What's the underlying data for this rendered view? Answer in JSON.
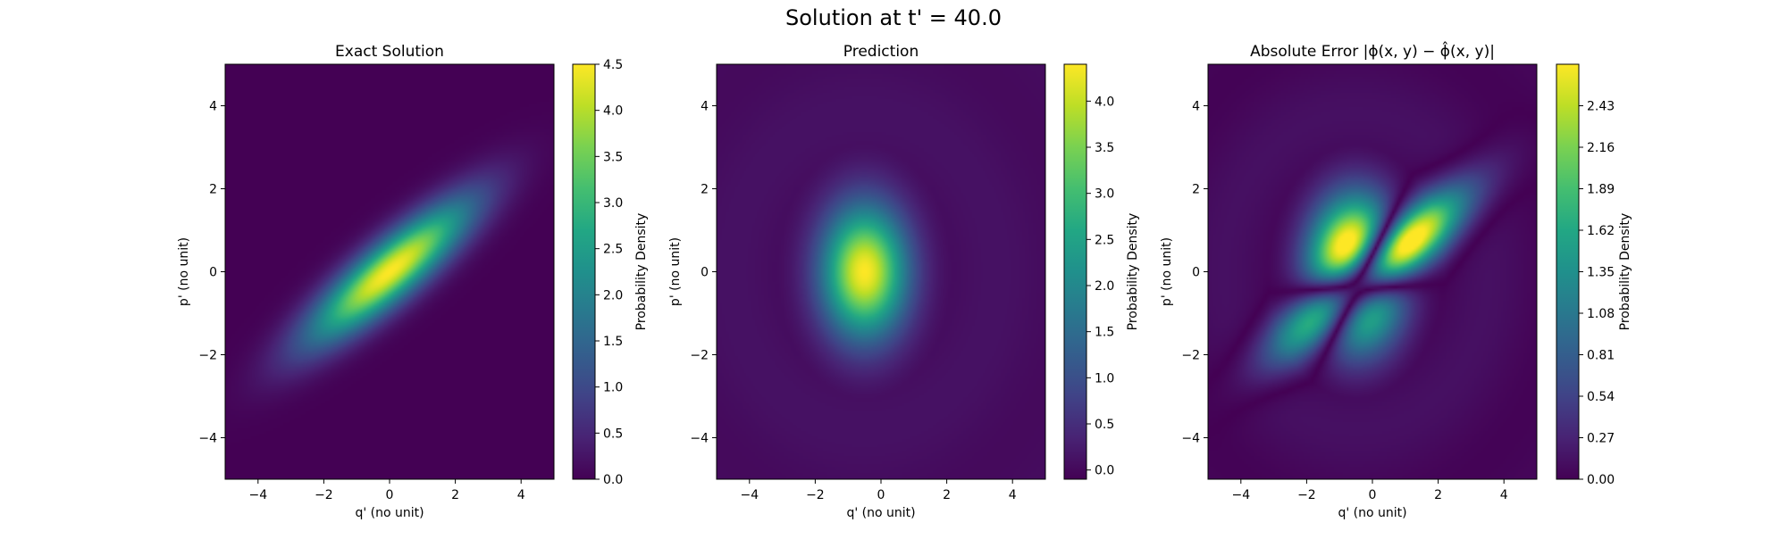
{
  "figure": {
    "suptitle": "Solution at t' = 40.0"
  },
  "chart_data": [
    {
      "type": "heatmap",
      "title": "Exact Solution",
      "xlabel": "q' (no unit)",
      "ylabel": "p' (no unit)",
      "xlim": [
        -5,
        5
      ],
      "ylim": [
        -5,
        5
      ],
      "xticks": [
        -4,
        -2,
        0,
        2,
        4
      ],
      "yticks": [
        -4,
        -2,
        0,
        2,
        4
      ],
      "colormap": "viridis",
      "colorbar": {
        "label": "Probability Density",
        "range": [
          0.0,
          4.5
        ],
        "ticks": [
          "0.0",
          "0.5",
          "1.0",
          "1.5",
          "2.0",
          "2.5",
          "3.0",
          "3.5",
          "4.0",
          "4.5"
        ]
      },
      "field": {
        "kind": "gaussian",
        "center": [
          0,
          0
        ],
        "peak": 4.5,
        "major_sigma": 2.0,
        "minor_sigma": 0.5,
        "angle_deg": 33
      }
    },
    {
      "type": "heatmap",
      "title": "Prediction",
      "xlabel": "q' (no unit)",
      "ylabel": "p' (no unit)",
      "xlim": [
        -5,
        5
      ],
      "ylim": [
        -5,
        5
      ],
      "xticks": [
        -4,
        -2,
        0,
        2,
        4
      ],
      "yticks": [
        -4,
        -2,
        0,
        2,
        4
      ],
      "colormap": "viridis",
      "colorbar": {
        "label": "Probability Density",
        "range": [
          -0.1,
          4.4
        ],
        "ticks": [
          "0.0",
          "0.5",
          "1.0",
          "1.5",
          "2.0",
          "2.5",
          "3.0",
          "3.5",
          "4.0"
        ]
      },
      "field": {
        "kind": "gaussian",
        "center": [
          -0.5,
          0
        ],
        "peak": 4.4,
        "sigma_x": 0.9,
        "sigma_y": 1.1,
        "baseline": 0.15
      }
    },
    {
      "type": "heatmap",
      "title": "Absolute Error |ϕ(x, y) − ϕ̂(x, y)|",
      "xlabel": "q' (no unit)",
      "ylabel": "p' (no unit)",
      "xlim": [
        -5,
        5
      ],
      "ylim": [
        -5,
        5
      ],
      "xticks": [
        -4,
        -2,
        0,
        2,
        4
      ],
      "yticks": [
        -4,
        -2,
        0,
        2,
        4
      ],
      "colormap": "viridis",
      "colorbar": {
        "label": "Probability Density",
        "range": [
          0.0,
          2.7
        ],
        "ticks": [
          "0.00",
          "0.27",
          "0.54",
          "0.81",
          "1.08",
          "1.35",
          "1.62",
          "1.89",
          "2.16",
          "2.43"
        ]
      },
      "field": {
        "kind": "abs_difference",
        "of": [
          0,
          1
        ],
        "max": 2.7
      }
    }
  ]
}
